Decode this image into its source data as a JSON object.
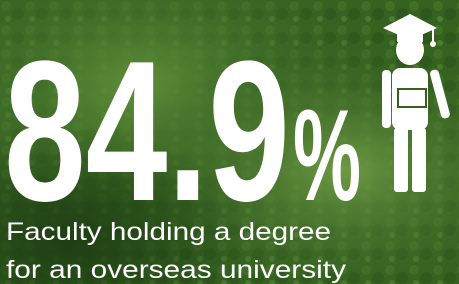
{
  "stat": {
    "value": 84.9,
    "unit": "%"
  },
  "caption": [
    "Faculty holding a degree",
    "for an overseas university"
  ]
}
